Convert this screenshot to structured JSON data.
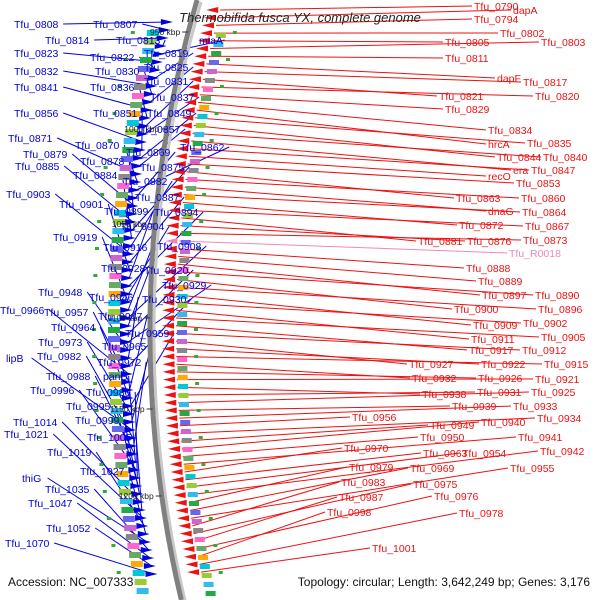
{
  "title": "Thermobifida fusca YX, complete genome",
  "footer": {
    "accession": "Accession: NC_007333",
    "summary": "Topology: circular; Length: 3,642,249 bp; Genes: 3,176"
  },
  "colors": {
    "forward": "#0000dd",
    "reverse": "#ee1111",
    "rna": "#ee88bb",
    "backbone": "#808080"
  },
  "ticks": [
    "950 kbp",
    "1000 kbp",
    "1050 kbp",
    "1100 kbp",
    "1150 kbp",
    "1200 kbp"
  ],
  "forward_genes": [
    "Tfu_0808",
    "Tfu_0807",
    "Tfu_0814",
    "Tfu_0813",
    "miaA",
    "Tfu_0823",
    "Tfu_0822",
    "Tfu_0819",
    "Tfu_0832",
    "Tfu_0830",
    "Tfu_0825",
    "Tfu_0841",
    "Tfu_0836",
    "Tfu_0831",
    "Tfu_0837",
    "Tfu_0856",
    "Tfu_0851",
    "Tfu_0849",
    "Tfu_0857",
    "Tfu_0871",
    "Tfu_0870",
    "Tfu_0862",
    "Tfu_0869",
    "Tfu_0879",
    "Tfu_0878",
    "Tfu_0885",
    "Tfu_0875",
    "Tfu_0884",
    "Tfu_0882",
    "Tfu_0903",
    "Tfu_0887",
    "Tfu_0901",
    "Tfu_0899",
    "Tfu_0894",
    "Tfu_0904",
    "Tfu_0919",
    "Tfu_0916",
    "Tfu_0908",
    "Tfu_0928",
    "Tfu_0920",
    "Tfu_0929",
    "Tfu_0948",
    "Tfu_0946",
    "Tfu_0930",
    "Tfu_0966",
    "Tfu_0957",
    "Tfu_0947",
    "Tfu_0964",
    "Tfu_0959",
    "Tfu_0973",
    "Tfu_0965",
    "lipB",
    "Tfu_0982",
    "Tfu_0972",
    "Tfu_0988",
    "panB",
    "Tfu_0996",
    "Tfu_0986",
    "Tfu_0995",
    "Tfu_0999",
    "Tfu_1014",
    "Tfu_1005",
    "Tfu_1021",
    "Tfu_1019",
    "Tfu_1027",
    "thiG",
    "Tfu_1035",
    "Tfu_1047",
    "Tfu_1052",
    "Tfu_1070"
  ],
  "reverse_genes": [
    "Tfu_0790",
    "dapA",
    "Tfu_0794",
    "Tfu_0802",
    "Tfu_0805",
    "Tfu_0803",
    "Tfu_0811",
    "dapF",
    "Tfu_0817",
    "Tfu_0821",
    "Tfu_0820",
    "Tfu_0829",
    "Tfu_0834",
    "hrcA",
    "Tfu_0835",
    "Tfu_0844",
    "Tfu_0840",
    "era",
    "Tfu_0847",
    "recO",
    "Tfu_0853",
    "Tfu_0863",
    "Tfu_0860",
    "dnaG",
    "Tfu_0864",
    "Tfu_0872",
    "Tfu_0867",
    "Tfu_0881",
    "Tfu_0876",
    "Tfu_0873",
    "Tfu_R0018",
    "Tfu_0888",
    "Tfu_0889",
    "Tfu_0897",
    "Tfu_0890",
    "Tfu_0900",
    "Tfu_0896",
    "Tfu_0909",
    "Tfu_0902",
    "Tfu_0911",
    "Tfu_0905",
    "Tfu_0917",
    "Tfu_0912",
    "Tfu_0927",
    "Tfu_0922",
    "Tfu_0915",
    "Tfu_0932",
    "Tfu_0926",
    "Tfu_0921",
    "Tfu_0938",
    "Tfu_0931",
    "Tfu_0925",
    "Tfu_0939",
    "Tfu_0933",
    "Tfu_0956",
    "Tfu_0934",
    "Tfu_0949",
    "Tfu_0940",
    "Tfu_0950",
    "Tfu_0941",
    "Tfu_0970",
    "Tfu_0963",
    "Tfu_0954",
    "Tfu_0942",
    "Tfu_0979",
    "Tfu_0969",
    "Tfu_0955",
    "Tfu_0983",
    "Tfu_0975",
    "Tfu_0987",
    "Tfu_0976",
    "Tfu_0998",
    "Tfu_0978",
    "Tfu_1001"
  ]
}
